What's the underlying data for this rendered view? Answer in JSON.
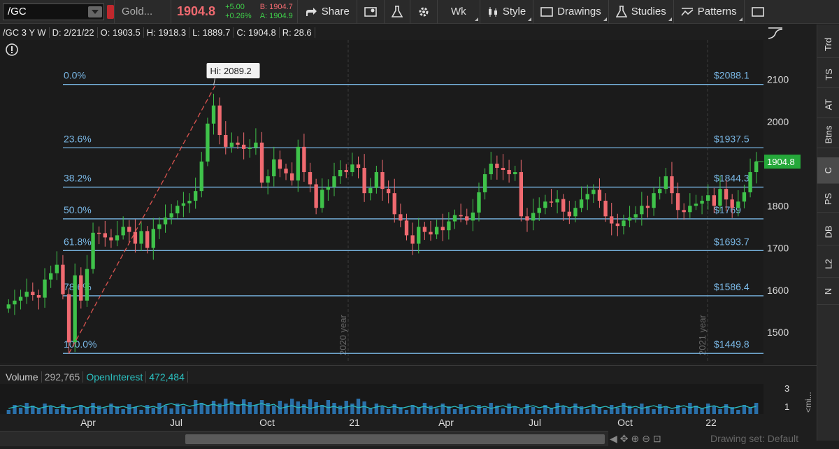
{
  "toolbar": {
    "symbol": "/GC",
    "name": "Gold...",
    "last": "1904.8",
    "change": "+5.00",
    "change_pct": "+0.26%",
    "bid": "B: 1904.7",
    "ask": "A: 1904.9",
    "share": "Share",
    "period": "Wk",
    "style": "Style",
    "drawings": "Drawings",
    "studies": "Studies",
    "patterns": "Patterns"
  },
  "info": {
    "title": "/GC 3 Y W",
    "date": "D: 2/21/22",
    "open": "O: 1903.5",
    "high": "H: 1918.3",
    "low": "L: 1889.7",
    "close": "C: 1904.8",
    "range": "R: 28.6"
  },
  "sidebar": [
    "Trd",
    "TS",
    "AT",
    "Btns",
    "C",
    "PS",
    "DB",
    "L2",
    "N"
  ],
  "volume_panel": {
    "label": "Volume",
    "volume": "292,765",
    "oi_label": "OpenInterest",
    "oi": "472,484",
    "scale_hi": "3",
    "scale_lo": "1",
    "side_label": "<mi..."
  },
  "footer": {
    "drawing_set": "Drawing set: Default"
  },
  "colors": {
    "up": "#3fc24a",
    "down": "#f06a70",
    "fib": "#7ab8e6",
    "oi": "#2bc0c0",
    "vol": "#2a6fa8"
  },
  "chart_data": {
    "type": "candlestick",
    "ylim": [
      1435,
      2140
    ],
    "yticks": [
      1500,
      1600,
      1700,
      1800,
      1900,
      2000,
      2100
    ],
    "xticks": [
      "Apr",
      "Jul",
      "Oct",
      "21",
      "Apr",
      "Jul",
      "Oct",
      "22"
    ],
    "year_markers": [
      "2020 year",
      "2021 year"
    ],
    "high_label": "Hi: 2089.2",
    "current_price": "1904.8",
    "fib_levels": [
      {
        "pct": "0.0%",
        "price": 2088.1,
        "label": "$2088.1"
      },
      {
        "pct": "23.6%",
        "price": 1937.5,
        "label": "$1937.5"
      },
      {
        "pct": "38.2%",
        "price": 1844.3,
        "label": "$1844.3"
      },
      {
        "pct": "50.0%",
        "price": 1769,
        "label": "$1769"
      },
      {
        "pct": "61.8%",
        "price": 1693.7,
        "label": "$1693.7"
      },
      {
        "pct": "78.6%",
        "price": 1586.4,
        "label": "$1586.4"
      },
      {
        "pct": "100.0%",
        "price": 1449.8,
        "label": "$1449.8"
      }
    ],
    "closes": [
      1566,
      1575,
      1584,
      1596,
      1588,
      1582,
      1625,
      1640,
      1660,
      1590,
      1476,
      1635,
      1575,
      1650,
      1736,
      1735,
      1725,
      1718,
      1730,
      1750,
      1738,
      1710,
      1740,
      1700,
      1745,
      1756,
      1772,
      1782,
      1800,
      1806,
      1812,
      1835,
      1905,
      1995,
      2038,
      1968,
      1940,
      1950,
      1945,
      1935,
      1938,
      1950,
      1855,
      1870,
      1910,
      1888,
      1877,
      1860,
      1940,
      1880,
      1851,
      1795,
      1838,
      1845,
      1870,
      1885,
      1880,
      1898,
      1890,
      1830,
      1842,
      1880,
      1840,
      1830,
      1780,
      1765,
      1730,
      1710,
      1750,
      1738,
      1732,
      1750,
      1742,
      1763,
      1778,
      1775,
      1765,
      1784,
      1832,
      1875,
      1900,
      1890,
      1885,
      1875,
      1880,
      1775,
      1765,
      1783,
      1795,
      1810,
      1808,
      1816,
      1786,
      1775,
      1795,
      1815,
      1828,
      1838,
      1812,
      1775,
      1758,
      1752,
      1765,
      1772,
      1780,
      1800,
      1795,
      1830,
      1840,
      1870,
      1830,
      1790,
      1785,
      1800,
      1805,
      1812,
      1825,
      1800,
      1840,
      1815,
      1795,
      1810,
      1832,
      1880,
      1904.8
    ],
    "x_range_label": "3 Y W"
  }
}
